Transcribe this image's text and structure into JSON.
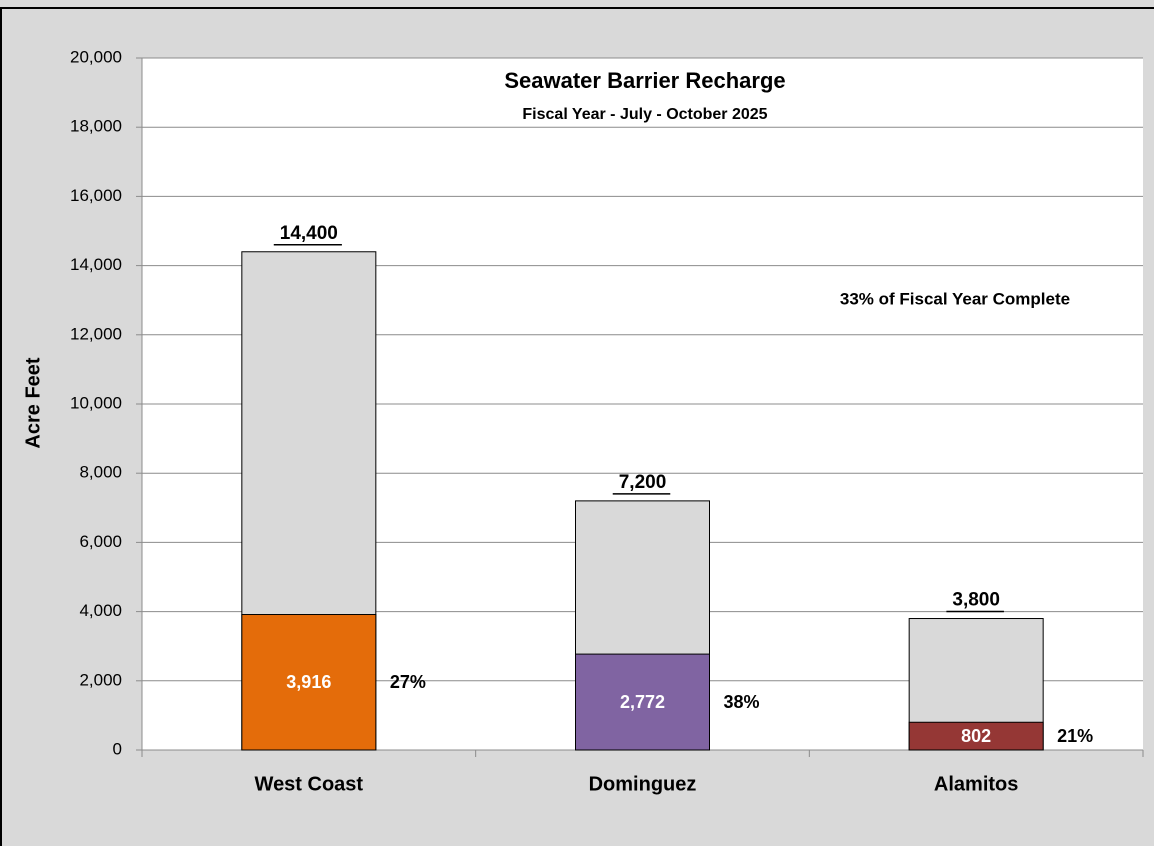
{
  "chart_data": {
    "type": "overlap-bar",
    "title": "Seawater Barrier Recharge",
    "subtitle": "Fiscal Year - July - October 2025",
    "y_label": "Acre Feet",
    "annotation": "33% of Fiscal Year Complete",
    "categories": [
      "West Coast",
      "Dominguez",
      "Alamitos"
    ],
    "series": [
      {
        "color": "#d9d9d9",
        "values": [
          14400,
          7200,
          3800
        ],
        "value_labels": [
          "14,400",
          "7,200",
          "3,800"
        ]
      },
      {
        "colors": [
          "#e46c0a",
          "#8064a2",
          "#953735"
        ],
        "values": [
          3916,
          2772,
          802
        ],
        "value_labels": [
          "3,916",
          "2,772",
          "802"
        ]
      }
    ],
    "percent_labels": [
      "27%",
      "38%",
      "21%"
    ],
    "ylim": [
      0,
      20000
    ],
    "yticks": [
      0,
      {
        "value": 2000,
        "label": "2,000"
      },
      {
        "value": 4000,
        "label": "4,000"
      },
      {
        "value": 6000,
        "label": "6,000"
      },
      {
        "value": 8000,
        "label": "8,000"
      },
      {
        "value": 10000,
        "label": "10,000"
      },
      {
        "value": 12000,
        "label": "12,000"
      },
      {
        "value": 14000,
        "label": "14,000"
      },
      {
        "value": 16000,
        "label": "16,000"
      },
      {
        "value": 18000,
        "label": "18,000"
      },
      {
        "value": 20000,
        "label": "20,000"
      }
    ],
    "grid": true
  }
}
